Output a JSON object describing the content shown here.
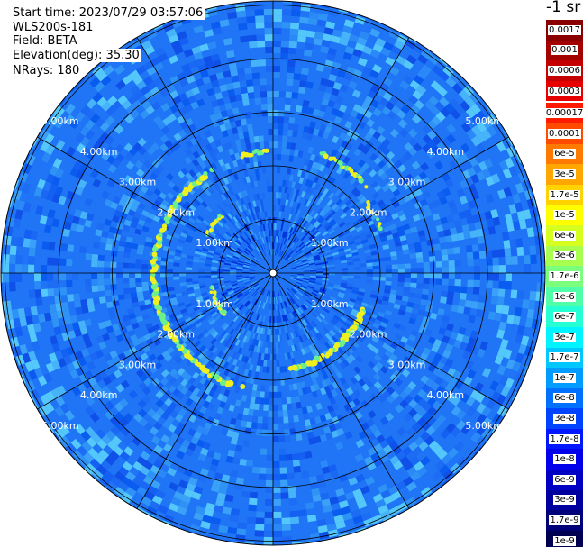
{
  "header": {
    "start_time": "Start time: 2023/07/29 03:57:06",
    "instrument": "WLS200s-181",
    "field": "Field: BETA",
    "elevation": "Elevation(deg): 35.30",
    "nrays": "NRays: 180"
  },
  "colorbar": {
    "unit_label": "-1 sr",
    "levels": [
      {
        "label": "0.0017",
        "color": "#8a0000"
      },
      {
        "label": "0.001",
        "color": "#a30000"
      },
      {
        "label": "0.0006",
        "color": "#c40000"
      },
      {
        "label": "0.0003",
        "color": "#e60000"
      },
      {
        "label": "0.00017",
        "color": "#ff1a00"
      },
      {
        "label": "0.0001",
        "color": "#ff4a00"
      },
      {
        "label": "6e-5",
        "color": "#ff7a00"
      },
      {
        "label": "3e-5",
        "color": "#ffa600"
      },
      {
        "label": "1.7e-5",
        "color": "#ffd200"
      },
      {
        "label": "1e-5",
        "color": "#ffff00"
      },
      {
        "label": "6e-6",
        "color": "#d6ff1f"
      },
      {
        "label": "3e-6",
        "color": "#a8ff50"
      },
      {
        "label": "1.7e-6",
        "color": "#7cff7c"
      },
      {
        "label": "1e-6",
        "color": "#50ffa8"
      },
      {
        "label": "6e-7",
        "color": "#26ffd4"
      },
      {
        "label": "3e-7",
        "color": "#00f4ff"
      },
      {
        "label": "1.7e-7",
        "color": "#00c8ff"
      },
      {
        "label": "1e-7",
        "color": "#009cff"
      },
      {
        "label": "6e-8",
        "color": "#0070ff"
      },
      {
        "label": "3e-8",
        "color": "#0044ff"
      },
      {
        "label": "1.7e-8",
        "color": "#0018ff"
      },
      {
        "label": "1e-8",
        "color": "#0000ea"
      },
      {
        "label": "6e-9",
        "color": "#0000c4"
      },
      {
        "label": "3e-9",
        "color": "#00009e"
      },
      {
        "label": "1.7e-9",
        "color": "#000078"
      },
      {
        "label": "1e-9",
        "color": "#000050"
      }
    ]
  },
  "plot": {
    "range_labels": [
      "1.00km",
      "2.00km",
      "3.00km",
      "4.00km",
      "5.00km"
    ],
    "background_color": "#1f75f5",
    "aerosol_ring_color": "#f0f020"
  }
}
